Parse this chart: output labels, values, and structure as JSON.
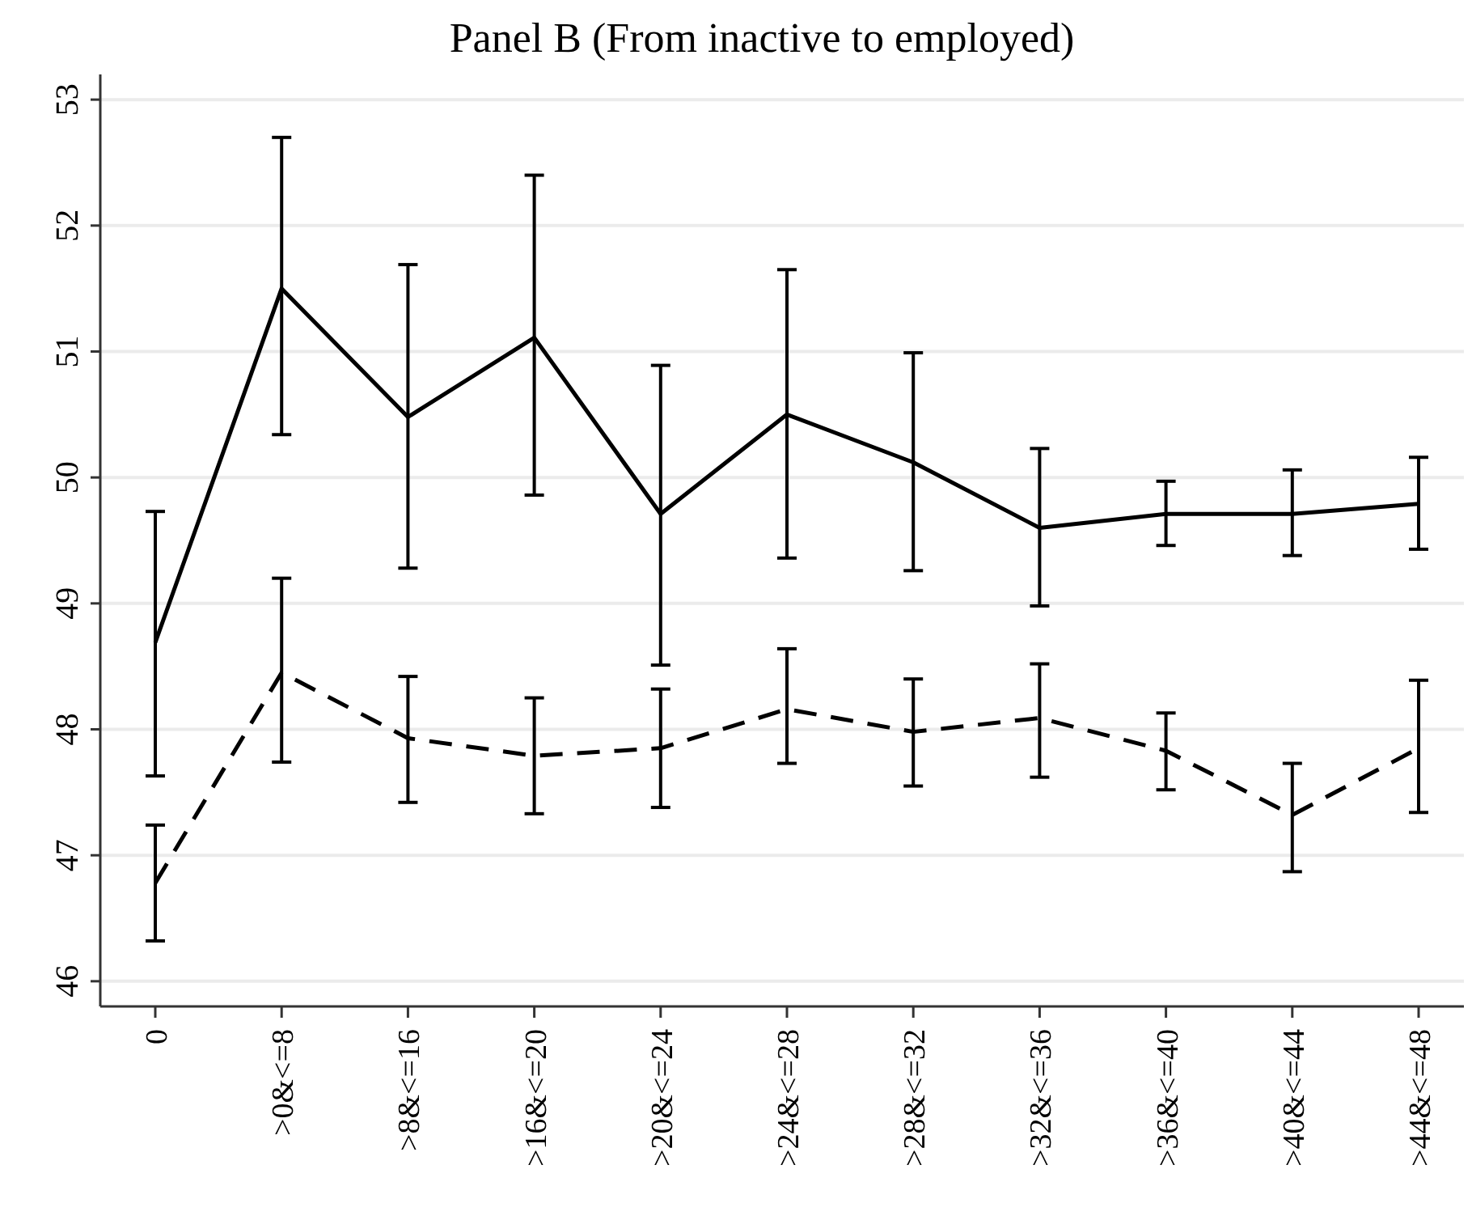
{
  "chart_data": {
    "type": "line",
    "title": "Panel B (From inactive to employed)",
    "categories": [
      "0",
      ">0&<=8",
      ">8&<=16",
      ">16&<=20",
      ">20&<=24",
      ">24&<=28",
      ">28&<=32",
      ">32&<=36",
      ">36&<=40",
      ">40&<=44",
      ">44&<=48"
    ],
    "series": [
      {
        "color": "#000000",
        "line_style": "solid",
        "values": [
          48.69,
          51.5,
          50.48,
          51.11,
          49.71,
          50.5,
          50.12,
          49.6,
          49.71,
          49.71,
          49.79
        ],
        "errors": [
          [
            47.63,
            49.73
          ],
          [
            50.34,
            52.7
          ],
          [
            49.28,
            51.69
          ],
          [
            49.86,
            52.4
          ],
          [
            48.51,
            50.89
          ],
          [
            49.36,
            51.65
          ],
          [
            49.26,
            50.99
          ],
          [
            48.98,
            50.23
          ],
          [
            49.46,
            49.97
          ],
          [
            49.38,
            50.06
          ],
          [
            49.43,
            50.16
          ]
        ]
      },
      {
        "color": "#000000",
        "line_style": "dashed",
        "values": [
          46.78,
          48.45,
          47.93,
          47.79,
          47.85,
          48.16,
          47.98,
          48.09,
          47.83,
          47.32,
          47.85
        ],
        "errors": [
          [
            46.32,
            47.24
          ],
          [
            47.74,
            49.2
          ],
          [
            47.42,
            48.42
          ],
          [
            47.33,
            48.25
          ],
          [
            47.38,
            48.32
          ],
          [
            47.73,
            48.64
          ],
          [
            47.55,
            48.4
          ],
          [
            47.62,
            48.52
          ],
          [
            47.52,
            48.13
          ],
          [
            46.87,
            47.73
          ],
          [
            47.34,
            48.39
          ]
        ]
      }
    ],
    "ylim": [
      45.8,
      53.2
    ],
    "yticks": [
      46,
      47,
      48,
      49,
      50,
      51,
      52,
      53
    ],
    "grid": "y",
    "marker": "none"
  }
}
